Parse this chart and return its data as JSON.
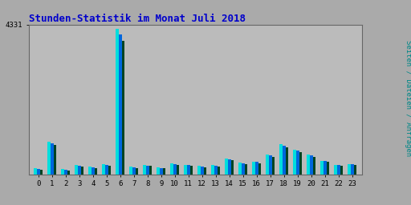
{
  "title": "Stunden-Statistik im Monat Juli 2018",
  "title_color": "#0000CC",
  "ylabel": "Seiten / Dateien / Anfragen",
  "ylabel_color": "#008888",
  "background_color": "#AAAAAA",
  "plot_bg_color": "#BBBBBB",
  "border_color": "#666666",
  "ylim_max": 4331,
  "ytick_label": "4331",
  "hours": [
    0,
    1,
    2,
    3,
    4,
    5,
    6,
    7,
    8,
    9,
    10,
    11,
    12,
    13,
    14,
    15,
    16,
    17,
    18,
    19,
    20,
    21,
    22,
    23
  ],
  "seiten": [
    180,
    950,
    150,
    270,
    220,
    300,
    4200,
    220,
    270,
    200,
    310,
    280,
    245,
    265,
    460,
    330,
    370,
    570,
    860,
    700,
    560,
    390,
    270,
    300
  ],
  "dateien": [
    160,
    900,
    130,
    250,
    205,
    280,
    4050,
    205,
    255,
    185,
    295,
    265,
    230,
    250,
    440,
    315,
    350,
    545,
    830,
    675,
    540,
    375,
    258,
    285
  ],
  "anfragen": [
    130,
    840,
    110,
    230,
    185,
    255,
    3850,
    185,
    235,
    165,
    275,
    248,
    210,
    230,
    410,
    295,
    325,
    510,
    790,
    640,
    505,
    350,
    240,
    265
  ],
  "color_seiten": "#00DDDD",
  "color_dateien": "#0066DD",
  "color_anfragen": "#004422",
  "bar_width": 0.22,
  "grid_color": "#999999",
  "tick_color": "#000000",
  "font_family": "monospace",
  "title_fontsize": 9,
  "tick_fontsize": 6.5,
  "ylabel_fontsize": 6.5
}
